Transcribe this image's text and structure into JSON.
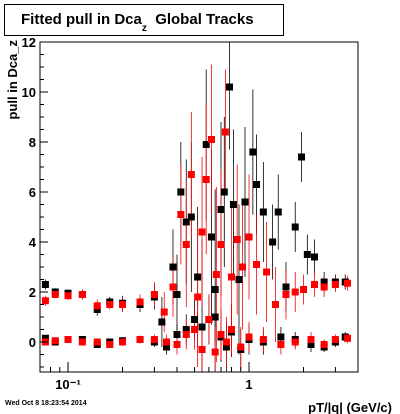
{
  "header": {
    "title_main": "Fitted pull in Dca",
    "title_sub": "z",
    "title_tail": "Global Tracks"
  },
  "footer": {
    "timestamp": "Wed Oct  8 18:23:54 2014"
  },
  "colors": {
    "series_black": "#000000",
    "series_red": "#ff0000",
    "axis": "#000000",
    "frame": "#000000"
  },
  "chart_data": {
    "type": "scatter",
    "title": "Fitted pull in Dca_z Global Tracks",
    "xlabel": "pT/|q| (GeV/c)",
    "ylabel": "pull in Dca_z",
    "xscale": "log",
    "xlim": [
      0.07,
      4.0
    ],
    "ylim": [
      -1.2,
      12.0
    ],
    "yticks": [
      0,
      2,
      4,
      6,
      8,
      10,
      12
    ],
    "xtick_labels": [
      {
        "value": 0.1,
        "label": "10⁻¹"
      },
      {
        "value": 1,
        "label": "1"
      }
    ],
    "grid": false,
    "legend": "none",
    "series": [
      {
        "color": "black",
        "marker": "square",
        "points": [
          [
            0.075,
            2.3,
            0.2
          ],
          [
            0.085,
            2.0,
            0.15
          ],
          [
            0.1,
            1.95,
            0.15
          ],
          [
            0.12,
            1.9,
            0.2
          ],
          [
            0.145,
            1.3,
            0.25
          ],
          [
            0.17,
            1.6,
            0.2
          ],
          [
            0.2,
            1.55,
            0.3
          ],
          [
            0.25,
            1.5,
            0.3
          ],
          [
            0.3,
            1.8,
            0.5
          ],
          [
            0.33,
            0.8,
            1.0
          ],
          [
            0.38,
            3.0,
            1.5
          ],
          [
            0.4,
            1.9,
            1.6
          ],
          [
            0.42,
            6.0,
            2.0
          ],
          [
            0.45,
            4.8,
            2.5
          ],
          [
            0.48,
            5.0,
            3.0
          ],
          [
            0.52,
            2.6,
            2.8
          ],
          [
            0.55,
            0.6,
            3.5
          ],
          [
            0.58,
            7.9,
            3.0
          ],
          [
            0.62,
            4.2,
            3.5
          ],
          [
            0.65,
            2.1,
            4.0
          ],
          [
            0.7,
            5.3,
            3.5
          ],
          [
            0.73,
            6.0,
            3.0
          ],
          [
            0.78,
            10.2,
            2.5
          ],
          [
            0.82,
            5.5,
            3.0
          ],
          [
            0.88,
            2.5,
            3.0
          ],
          [
            0.95,
            5.6,
            3.0
          ],
          [
            1.05,
            7.6,
            2.5
          ],
          [
            1.1,
            6.3,
            2.0
          ],
          [
            1.2,
            5.2,
            2.0
          ],
          [
            1.35,
            4.0,
            1.5
          ],
          [
            1.45,
            5.2,
            1.5
          ],
          [
            1.6,
            2.2,
            1.0
          ],
          [
            1.8,
            4.6,
            1.0
          ],
          [
            1.95,
            7.4,
            1.0
          ],
          [
            2.1,
            3.5,
            0.8
          ],
          [
            2.3,
            3.4,
            0.7
          ],
          [
            2.6,
            2.4,
            0.4
          ],
          [
            3.0,
            2.4,
            0.3
          ],
          [
            3.4,
            2.4,
            0.3
          ],
          [
            0.075,
            0.15,
            0.1
          ],
          [
            0.085,
            0.0,
            0.1
          ],
          [
            0.1,
            0.1,
            0.1
          ],
          [
            0.12,
            0.1,
            0.1
          ],
          [
            0.145,
            -0.1,
            0.1
          ],
          [
            0.17,
            0.0,
            0.1
          ],
          [
            0.2,
            0.05,
            0.15
          ],
          [
            0.25,
            0.1,
            0.15
          ],
          [
            0.3,
            0.0,
            0.2
          ],
          [
            0.35,
            -0.2,
            0.3
          ],
          [
            0.4,
            0.3,
            0.4
          ],
          [
            0.45,
            0.5,
            0.6
          ],
          [
            0.5,
            0.9,
            0.8
          ],
          [
            0.55,
            -0.3,
            1.0
          ],
          [
            0.6,
            0.9,
            1.0
          ],
          [
            0.65,
            1.0,
            1.0
          ],
          [
            0.7,
            0.2,
            1.0
          ],
          [
            0.75,
            -0.2,
            1.0
          ],
          [
            0.8,
            0.4,
            1.0
          ],
          [
            0.9,
            -0.3,
            0.8
          ],
          [
            1.0,
            0.1,
            0.6
          ],
          [
            1.2,
            0.0,
            0.5
          ],
          [
            1.5,
            0.2,
            0.4
          ],
          [
            1.8,
            0.1,
            0.3
          ],
          [
            2.2,
            -0.1,
            0.3
          ],
          [
            2.6,
            -0.2,
            0.2
          ],
          [
            3.0,
            0.0,
            0.2
          ],
          [
            3.4,
            0.2,
            0.2
          ]
        ]
      },
      {
        "color": "red",
        "marker": "square",
        "points": [
          [
            0.075,
            1.65,
            0.2
          ],
          [
            0.085,
            1.9,
            0.15
          ],
          [
            0.1,
            1.85,
            0.15
          ],
          [
            0.12,
            1.9,
            0.2
          ],
          [
            0.145,
            1.45,
            0.25
          ],
          [
            0.17,
            1.5,
            0.2
          ],
          [
            0.2,
            1.5,
            0.3
          ],
          [
            0.25,
            1.6,
            0.3
          ],
          [
            0.3,
            1.9,
            0.5
          ],
          [
            0.34,
            1.2,
            0.8
          ],
          [
            0.38,
            2.2,
            1.2
          ],
          [
            0.42,
            5.1,
            2.0
          ],
          [
            0.45,
            3.9,
            2.5
          ],
          [
            0.48,
            6.7,
            2.5
          ],
          [
            0.52,
            1.8,
            2.8
          ],
          [
            0.55,
            4.4,
            3.0
          ],
          [
            0.58,
            6.5,
            3.0
          ],
          [
            0.62,
            8.1,
            3.0
          ],
          [
            0.66,
            2.7,
            3.5
          ],
          [
            0.7,
            3.9,
            3.0
          ],
          [
            0.74,
            8.4,
            2.5
          ],
          [
            0.8,
            2.6,
            3.0
          ],
          [
            0.86,
            4.1,
            3.0
          ],
          [
            0.92,
            3.0,
            2.5
          ],
          [
            1.0,
            4.2,
            2.5
          ],
          [
            1.1,
            3.1,
            2.0
          ],
          [
            1.25,
            2.8,
            2.0
          ],
          [
            1.4,
            1.5,
            1.5
          ],
          [
            1.6,
            1.9,
            1.0
          ],
          [
            1.8,
            2.0,
            0.8
          ],
          [
            2.0,
            2.1,
            0.6
          ],
          [
            2.3,
            2.3,
            0.5
          ],
          [
            2.6,
            2.2,
            0.4
          ],
          [
            3.0,
            2.3,
            0.3
          ],
          [
            3.5,
            2.35,
            0.3
          ],
          [
            0.075,
            0.0,
            0.1
          ],
          [
            0.085,
            0.05,
            0.1
          ],
          [
            0.1,
            0.1,
            0.1
          ],
          [
            0.12,
            0.0,
            0.1
          ],
          [
            0.145,
            0.0,
            0.1
          ],
          [
            0.17,
            -0.1,
            0.1
          ],
          [
            0.2,
            0.0,
            0.15
          ],
          [
            0.25,
            0.1,
            0.15
          ],
          [
            0.3,
            0.1,
            0.2
          ],
          [
            0.35,
            0.0,
            0.3
          ],
          [
            0.4,
            -0.1,
            0.4
          ],
          [
            0.45,
            0.3,
            0.6
          ],
          [
            0.5,
            0.5,
            0.8
          ],
          [
            0.55,
            -0.3,
            1.0
          ],
          [
            0.6,
            0.9,
            1.0
          ],
          [
            0.65,
            -0.4,
            1.0
          ],
          [
            0.7,
            0.3,
            1.0
          ],
          [
            0.75,
            0.0,
            1.0
          ],
          [
            0.8,
            0.5,
            1.0
          ],
          [
            0.9,
            -0.2,
            0.8
          ],
          [
            1.0,
            0.2,
            0.6
          ],
          [
            1.2,
            0.1,
            0.5
          ],
          [
            1.5,
            -0.1,
            0.4
          ],
          [
            1.8,
            0.0,
            0.3
          ],
          [
            2.2,
            0.1,
            0.3
          ],
          [
            2.6,
            -0.1,
            0.2
          ],
          [
            3.0,
            0.1,
            0.2
          ],
          [
            3.5,
            0.15,
            0.2
          ]
        ]
      }
    ]
  }
}
